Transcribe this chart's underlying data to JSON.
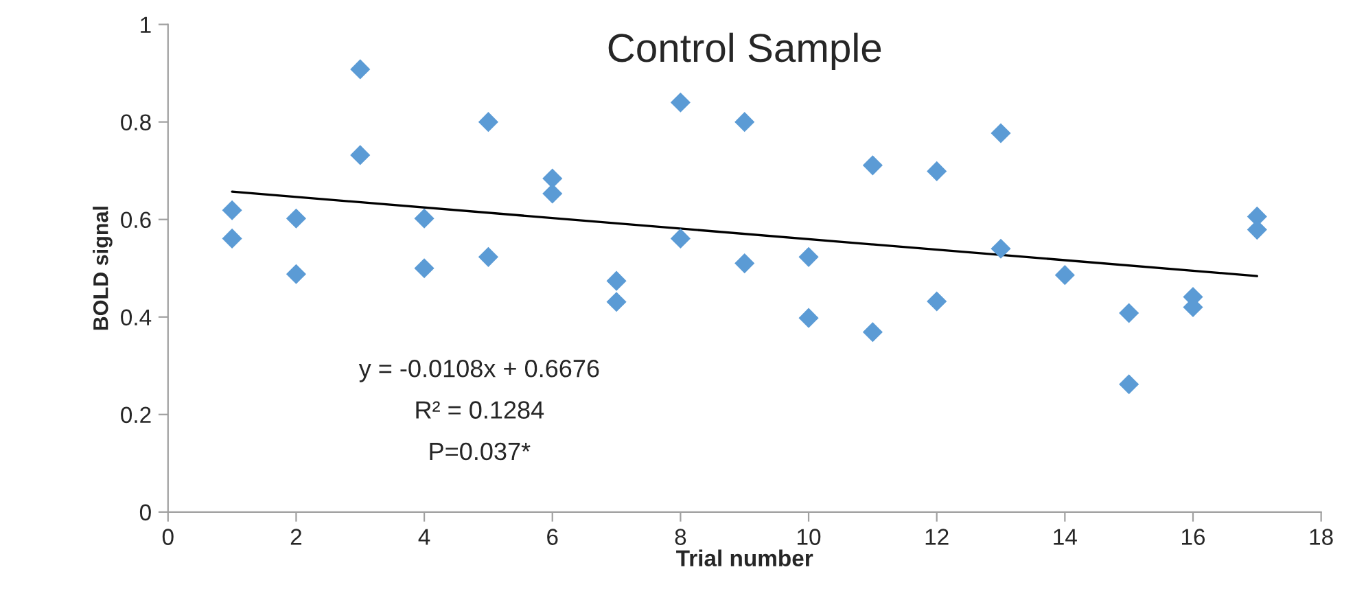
{
  "chart_data": {
    "type": "scatter",
    "title": "Control Sample",
    "xlabel": "Trial number",
    "ylabel": "BOLD signal",
    "marker": "diamond",
    "grid": false,
    "xlim": [
      0,
      18
    ],
    "xticks": [
      0,
      2,
      4,
      6,
      8,
      10,
      12,
      14,
      16,
      18
    ],
    "ylim": [
      0,
      1
    ],
    "yticks": [
      0,
      0.2,
      0.4,
      0.6,
      0.8,
      1
    ],
    "series": [
      {
        "color": "#5b9bd5",
        "x": [
          1,
          1,
          2,
          2,
          3,
          3,
          4,
          4,
          5,
          5,
          6,
          6,
          7,
          7,
          8,
          8,
          9,
          9,
          10,
          10,
          11,
          11,
          12,
          12,
          13,
          13,
          14,
          15,
          15,
          16,
          16,
          17,
          17
        ],
        "values": [
          0.619,
          0.561,
          0.602,
          0.488,
          0.908,
          0.732,
          0.602,
          0.5,
          0.8,
          0.523,
          0.684,
          0.653,
          0.474,
          0.431,
          0.84,
          0.561,
          0.8,
          0.51,
          0.523,
          0.398,
          0.711,
          0.369,
          0.699,
          0.432,
          0.777,
          0.54,
          0.486,
          0.408,
          0.262,
          0.441,
          0.42,
          0.606,
          0.579
        ]
      },
      {
        "type": "line",
        "color": "#000000",
        "marker": "none",
        "x": [
          1,
          17
        ],
        "values": [
          0.657,
          0.484
        ]
      }
    ],
    "annotations": [
      "y = -0.0108x + 0.6676",
      "R² = 0.1284",
      "P=0.037*"
    ]
  }
}
